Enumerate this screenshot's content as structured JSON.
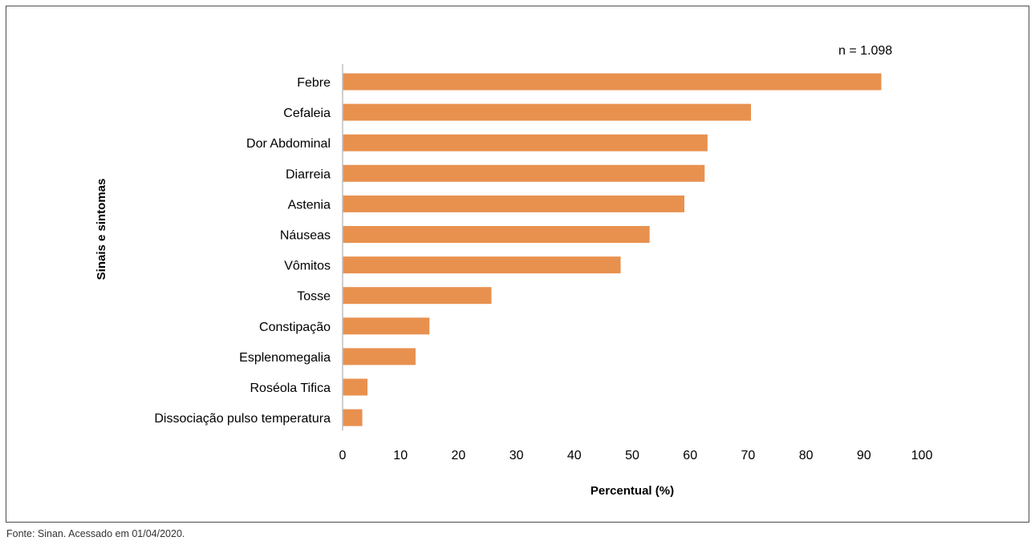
{
  "chart_data": {
    "type": "bar",
    "orientation": "horizontal",
    "categories": [
      "Febre",
      "Cefaleia",
      "Dor Abdominal",
      "Diarreia",
      "Astenia",
      "Náuseas",
      "Vômitos",
      "Tosse",
      "Constipação",
      "Esplenomegalia",
      "Roséola Tifica",
      "Dissociação pulso temperatura"
    ],
    "values": [
      93,
      70.5,
      63,
      62.5,
      59,
      53,
      48,
      25.7,
      15,
      12.6,
      4.3,
      3.4
    ],
    "xlabel": "Percentual (%)",
    "ylabel": "Sinais e sintomas",
    "xlim": [
      0,
      100
    ],
    "xticks": [
      0,
      10,
      20,
      30,
      40,
      50,
      60,
      70,
      80,
      90,
      100
    ],
    "annotation": "n = 1.098",
    "bar_color": "#E8914F",
    "grid": false,
    "legend": "none"
  },
  "source_note": "Fonte: Sinan. Acessado em 01/04/2020."
}
